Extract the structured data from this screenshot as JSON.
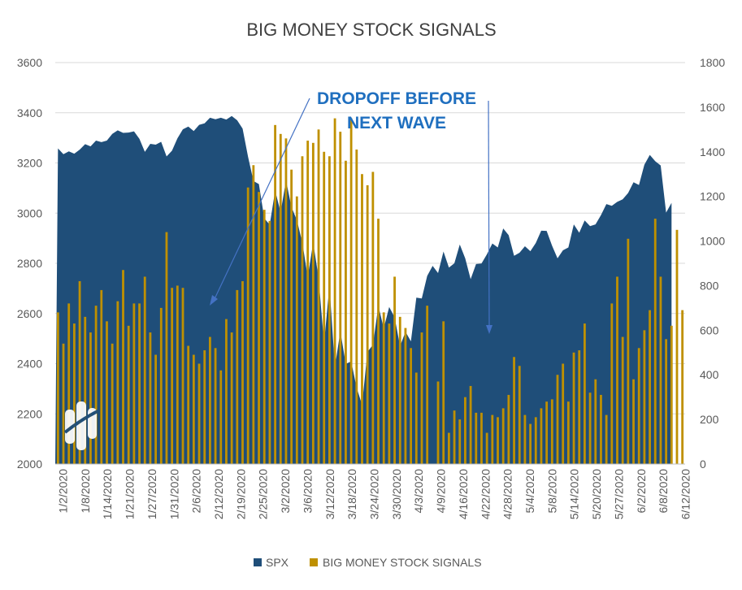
{
  "chart_data": {
    "type": "area+bar",
    "title": "BIG MONEY STOCK SIGNALS",
    "colors": {
      "spx": "#1f4e79",
      "signals": "#bf9000",
      "annotation": "#1f6fbf",
      "text": "#595959"
    },
    "y_left": {
      "min": 2000,
      "max": 3600,
      "ticks": [
        2000,
        2200,
        2400,
        2600,
        2800,
        3000,
        3200,
        3400,
        3600
      ]
    },
    "y_right": {
      "min": 0,
      "max": 1800,
      "ticks": [
        0,
        200,
        400,
        600,
        800,
        1000,
        1200,
        1400,
        1600,
        1800
      ]
    },
    "x_tick_labels": [
      "1/2/2020",
      "1/8/2020",
      "1/14/2020",
      "1/21/2020",
      "1/27/2020",
      "1/31/2020",
      "2/6/2020",
      "2/12/2020",
      "2/19/2020",
      "2/25/2020",
      "3/2/2020",
      "3/6/2020",
      "3/12/2020",
      "3/18/2020",
      "3/24/2020",
      "3/30/2020",
      "4/3/2020",
      "4/9/2020",
      "4/16/2020",
      "4/22/2020",
      "4/28/2020",
      "5/4/2020",
      "5/8/2020",
      "5/14/2020",
      "5/20/2020",
      "5/27/2020",
      "6/2/2020",
      "6/8/2020",
      "6/12/2020"
    ],
    "series": [
      {
        "name": "SPX",
        "kind": "area",
        "axis": "left",
        "values": [
          3258,
          3235,
          3246,
          3237,
          3253,
          3275,
          3266,
          3289,
          3283,
          3289,
          3316,
          3330,
          3320,
          3321,
          3326,
          3296,
          3244,
          3276,
          3273,
          3284,
          3226,
          3249,
          3298,
          3334,
          3345,
          3327,
          3352,
          3358,
          3380,
          3374,
          3380,
          3373,
          3387,
          3370,
          3337,
          3225,
          3128,
          3116,
          2979,
          2954,
          3090,
          3003,
          3130,
          3024,
          2972,
          2882,
          2746,
          2882,
          2742,
          2480,
          2711,
          2386,
          2529,
          2399,
          2409,
          2304,
          2237,
          2447,
          2475,
          2630,
          2541,
          2626,
          2585,
          2470,
          2527,
          2489,
          2663,
          2660,
          2750,
          2790,
          2761,
          2847,
          2783,
          2800,
          2875,
          2820,
          2737,
          2797,
          2799,
          2836,
          2879,
          2863,
          2939,
          2912,
          2830,
          2842,
          2868,
          2848,
          2881,
          2930,
          2929,
          2870,
          2820,
          2852,
          2863,
          2955,
          2922,
          2971,
          2948,
          2955,
          2992,
          3036,
          3029,
          3045,
          3055,
          3080,
          3123,
          3112,
          3193,
          3232,
          3207,
          3190,
          3002,
          3041
        ],
        "plot_last_index": 113
      },
      {
        "name": "BIG MONEY STOCK SIGNALS",
        "kind": "bar",
        "axis": "right",
        "values": [
          680,
          540,
          720,
          630,
          820,
          660,
          590,
          710,
          780,
          640,
          540,
          730,
          870,
          620,
          720,
          720,
          840,
          590,
          490,
          700,
          1040,
          790,
          800,
          790,
          530,
          490,
          450,
          510,
          570,
          520,
          420,
          650,
          590,
          780,
          820,
          1240,
          1340,
          1220,
          1140,
          1090,
          1520,
          1480,
          1460,
          1320,
          1200,
          1380,
          1450,
          1440,
          1500,
          1400,
          1380,
          1550,
          1490,
          1360,
          1550,
          1410,
          1300,
          1250,
          1310,
          1100,
          680,
          630,
          840,
          660,
          610,
          520,
          410,
          590,
          710,
          0,
          370,
          640,
          140,
          240,
          200,
          300,
          350,
          230,
          230,
          140,
          220,
          210,
          250,
          310,
          480,
          440,
          220,
          180,
          210,
          250,
          280,
          290,
          400,
          450,
          280,
          500,
          510,
          630,
          320,
          380,
          310,
          220,
          720,
          840,
          570,
          1010,
          380,
          520,
          600,
          690,
          1100,
          840,
          560,
          620,
          1050,
          690
        ]
      }
    ],
    "annotation": {
      "line1": "DROPOFF BEFORE",
      "line2": "NEXT WAVE"
    }
  }
}
